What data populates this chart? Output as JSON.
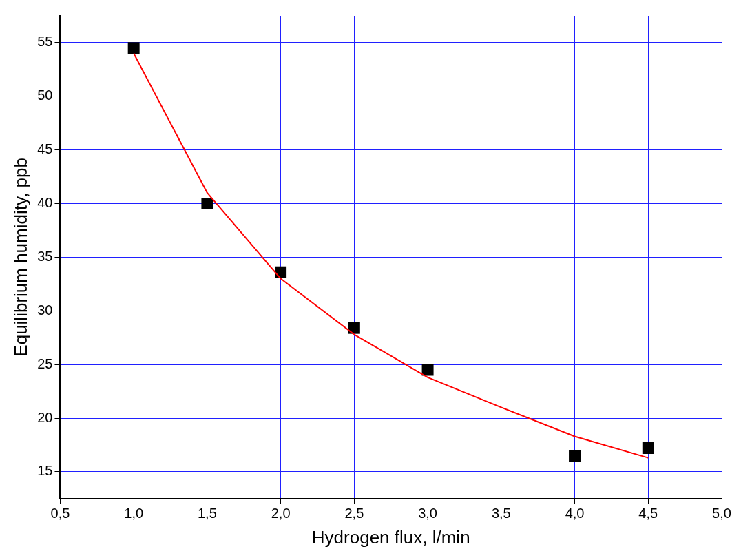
{
  "chart_data": {
    "type": "scatter",
    "xlabel": "Hydrogen flux, l/min",
    "ylabel": "Equilibrium humidity, ppb",
    "xlim": [
      0.5,
      5.0
    ],
    "xticks": [
      {
        "value": 0.5,
        "label": "0,5"
      },
      {
        "value": 1.0,
        "label": "1,0"
      },
      {
        "value": 1.5,
        "label": "1,5"
      },
      {
        "value": 2.0,
        "label": "2,0"
      },
      {
        "value": 2.5,
        "label": "2,5"
      },
      {
        "value": 3.0,
        "label": "3,0"
      },
      {
        "value": 3.5,
        "label": "3,5"
      },
      {
        "value": 4.0,
        "label": "4,0"
      },
      {
        "value": 4.5,
        "label": "4,5"
      },
      {
        "value": 5.0,
        "label": "5,0"
      }
    ],
    "ylim": [
      12.5,
      57.5
    ],
    "yticks": [
      15,
      20,
      25,
      30,
      35,
      40,
      45,
      50,
      55
    ],
    "grid": true,
    "series": [
      {
        "type": "scatter",
        "color": "#000000",
        "marker": "square",
        "x": [
          1.0,
          1.5,
          2.0,
          2.5,
          3.0,
          4.0,
          4.5
        ],
        "values": [
          54.5,
          40.0,
          33.6,
          28.4,
          24.5,
          16.5,
          17.2
        ]
      },
      {
        "type": "line",
        "color": "#ff0000",
        "marker": "none",
        "line_style": "solid",
        "x": [
          1.0,
          1.5,
          2.0,
          2.5,
          3.0,
          3.5,
          4.0,
          4.5
        ],
        "values": [
          54.0,
          41.0,
          33.0,
          27.8,
          23.8,
          21.0,
          18.3,
          16.3
        ]
      }
    ]
  }
}
